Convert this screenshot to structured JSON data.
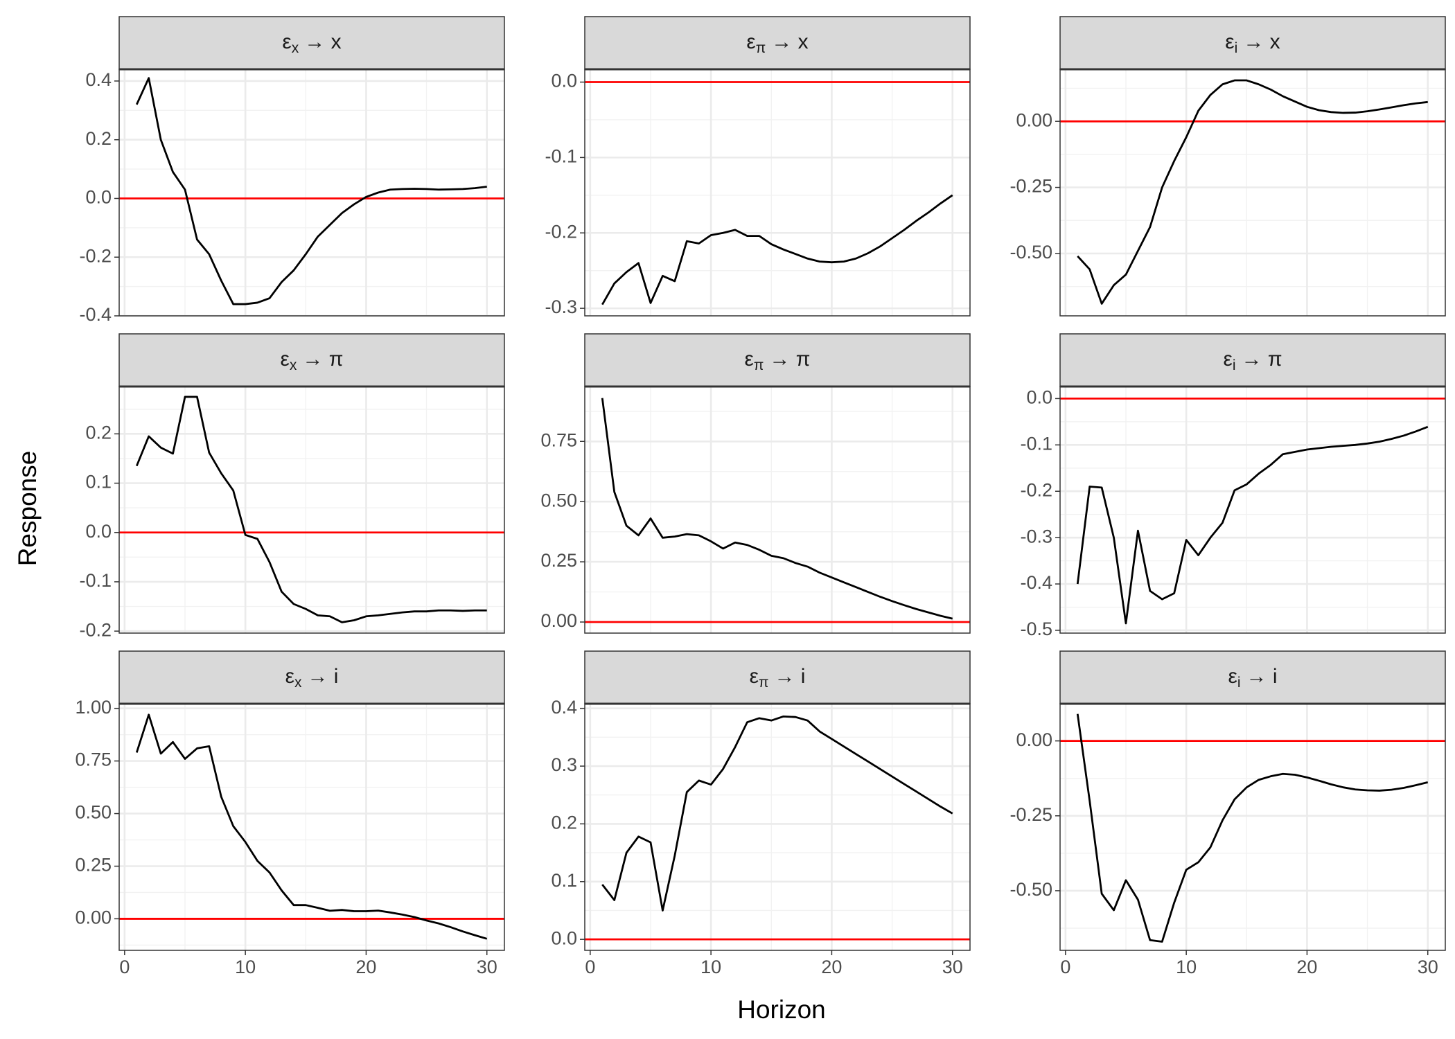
{
  "xlabel": "Horizon",
  "ylabel": "Response",
  "chart_data": [
    {
      "type": "line",
      "strip": {
        "symbol": "ε",
        "subscript": "x",
        "label": "→ x"
      },
      "x": [
        1,
        2,
        3,
        4,
        5,
        6,
        7,
        8,
        9,
        10,
        11,
        12,
        13,
        14,
        15,
        16,
        17,
        18,
        19,
        20,
        21,
        22,
        23,
        24,
        25,
        26,
        27,
        28,
        29,
        30
      ],
      "values": [
        0.32,
        0.41,
        0.2,
        0.09,
        0.03,
        -0.14,
        -0.19,
        -0.28,
        -0.36,
        -0.36,
        -0.355,
        -0.34,
        -0.285,
        -0.245,
        -0.19,
        -0.13,
        -0.09,
        -0.05,
        -0.02,
        0.005,
        0.02,
        0.03,
        0.032,
        0.033,
        0.032,
        0.03,
        0.031,
        0.032,
        0.035,
        0.04
      ],
      "color": "#000000",
      "reference_line": {
        "value": 0,
        "color": "#ff0000"
      },
      "grid": true,
      "xlim": [
        -0.45,
        31.45
      ],
      "xticks": [
        0,
        10,
        20,
        30
      ],
      "minor_xticks": [
        5,
        15,
        25
      ],
      "ylim": [
        -0.4,
        0.44
      ],
      "yticks": [
        -0.4,
        -0.2,
        {
          "value": 0,
          "label": "0.0"
        },
        0.2,
        0.4
      ],
      "minor_yticks": [
        -0.3,
        -0.1,
        0.1,
        0.3
      ]
    },
    {
      "type": "line",
      "strip": {
        "symbol": "ε",
        "subscript": "π",
        "label": "→ x"
      },
      "x": [
        1,
        2,
        3,
        4,
        5,
        6,
        7,
        8,
        9,
        10,
        11,
        12,
        13,
        14,
        15,
        16,
        17,
        18,
        19,
        20,
        21,
        22,
        23,
        24,
        25,
        26,
        27,
        28,
        29,
        30
      ],
      "values": [
        -0.295,
        -0.267,
        -0.252,
        -0.24,
        -0.293,
        -0.257,
        -0.264,
        -0.211,
        -0.214,
        -0.203,
        -0.2,
        -0.196,
        -0.204,
        -0.204,
        -0.215,
        -0.222,
        -0.228,
        -0.234,
        -0.238,
        -0.239,
        -0.238,
        -0.234,
        -0.227,
        -0.218,
        -0.207,
        -0.196,
        -0.184,
        -0.173,
        -0.161,
        -0.15
      ],
      "color": "#000000",
      "reference_line": {
        "value": 0,
        "color": "#ff0000"
      },
      "grid": true,
      "xlim": [
        -0.45,
        31.45
      ],
      "xticks": [
        0,
        10,
        20,
        30
      ],
      "minor_xticks": [
        5,
        15,
        25
      ],
      "ylim": [
        -0.31,
        0.017
      ],
      "yticks": [
        -0.3,
        -0.2,
        -0.1,
        {
          "value": 0,
          "label": "0.0"
        }
      ],
      "minor_yticks": [
        -0.25,
        -0.15,
        -0.05
      ]
    },
    {
      "type": "line",
      "strip": {
        "symbol": "ε",
        "subscript": "i",
        "label": "→ x"
      },
      "x": [
        1,
        2,
        3,
        4,
        5,
        6,
        7,
        8,
        9,
        10,
        11,
        12,
        13,
        14,
        15,
        16,
        17,
        18,
        19,
        20,
        21,
        22,
        23,
        24,
        25,
        26,
        27,
        28,
        29,
        30
      ],
      "values": [
        -0.51,
        -0.56,
        -0.69,
        -0.62,
        -0.58,
        -0.49,
        -0.4,
        -0.25,
        -0.15,
        -0.06,
        0.04,
        0.1,
        0.14,
        0.155,
        0.155,
        0.14,
        0.12,
        0.095,
        0.075,
        0.055,
        0.042,
        0.035,
        0.032,
        0.033,
        0.038,
        0.045,
        0.053,
        0.061,
        0.068,
        0.073
      ],
      "color": "#000000",
      "reference_line": {
        "value": 0,
        "color": "#ff0000"
      },
      "grid": true,
      "xlim": [
        -0.45,
        31.45
      ],
      "xticks": [
        0,
        10,
        20,
        30
      ],
      "minor_xticks": [
        5,
        15,
        25
      ],
      "ylim": [
        -0.736,
        0.197
      ],
      "yticks": [
        {
          "value": -0.5,
          "label": "-0.50"
        },
        -0.25,
        {
          "value": 0,
          "label": "0.00"
        }
      ],
      "minor_yticks": [
        -0.625,
        -0.375,
        -0.125,
        0.125
      ]
    },
    {
      "type": "line",
      "strip": {
        "symbol": "ε",
        "subscript": "x",
        "label": "→ π"
      },
      "x": [
        1,
        2,
        3,
        4,
        5,
        6,
        7,
        8,
        9,
        10,
        11,
        12,
        13,
        14,
        15,
        16,
        17,
        18,
        19,
        20,
        21,
        22,
        23,
        24,
        25,
        26,
        27,
        28,
        29,
        30
      ],
      "values": [
        0.135,
        0.195,
        0.172,
        0.16,
        0.275,
        0.275,
        0.162,
        0.12,
        0.085,
        -0.005,
        -0.013,
        -0.06,
        -0.12,
        -0.145,
        -0.155,
        -0.168,
        -0.17,
        -0.182,
        -0.178,
        -0.17,
        -0.168,
        -0.165,
        -0.162,
        -0.16,
        -0.16,
        -0.158,
        -0.158,
        -0.159,
        -0.158,
        -0.158
      ],
      "color": "#000000",
      "reference_line": {
        "value": 0,
        "color": "#ff0000"
      },
      "grid": true,
      "xlim": [
        -0.45,
        31.45
      ],
      "xticks": [
        0,
        10,
        20,
        30
      ],
      "minor_xticks": [
        5,
        15,
        25
      ],
      "ylim": [
        -0.204,
        0.296
      ],
      "yticks": [
        -0.2,
        -0.1,
        {
          "value": 0,
          "label": "0.0"
        },
        0.1,
        0.2
      ],
      "minor_yticks": [
        -0.15,
        -0.05,
        0.05,
        0.15,
        0.25
      ]
    },
    {
      "type": "line",
      "strip": {
        "symbol": "ε",
        "subscript": "π",
        "label": "→ π"
      },
      "x": [
        1,
        2,
        3,
        4,
        5,
        6,
        7,
        8,
        9,
        10,
        11,
        12,
        13,
        14,
        15,
        16,
        17,
        18,
        19,
        20,
        21,
        22,
        23,
        24,
        25,
        26,
        27,
        28,
        29,
        30
      ],
      "values": [
        0.93,
        0.54,
        0.4,
        0.36,
        0.43,
        0.35,
        0.355,
        0.365,
        0.36,
        0.335,
        0.305,
        0.33,
        0.32,
        0.3,
        0.275,
        0.265,
        0.245,
        0.23,
        0.205,
        0.185,
        0.165,
        0.145,
        0.125,
        0.105,
        0.087,
        0.07,
        0.054,
        0.04,
        0.026,
        0.014
      ],
      "color": "#000000",
      "reference_line": {
        "value": 0,
        "color": "#ff0000"
      },
      "grid": true,
      "xlim": [
        -0.45,
        31.45
      ],
      "xticks": [
        0,
        10,
        20,
        30
      ],
      "minor_xticks": [
        5,
        15,
        25
      ],
      "ylim": [
        -0.046,
        0.978
      ],
      "yticks": [
        {
          "value": 0,
          "label": "0.00"
        },
        0.25,
        {
          "value": 0.5,
          "label": "0.50"
        },
        0.75
      ],
      "minor_yticks": [
        0.125,
        0.375,
        0.625,
        0.875
      ]
    },
    {
      "type": "line",
      "strip": {
        "symbol": "ε",
        "subscript": "i",
        "label": "→ π"
      },
      "x": [
        1,
        2,
        3,
        4,
        5,
        6,
        7,
        8,
        9,
        10,
        11,
        12,
        13,
        14,
        15,
        16,
        17,
        18,
        19,
        20,
        21,
        22,
        23,
        24,
        25,
        26,
        27,
        28,
        29,
        30
      ],
      "values": [
        -0.4,
        -0.19,
        -0.192,
        -0.3,
        -0.485,
        -0.285,
        -0.415,
        -0.433,
        -0.42,
        -0.305,
        -0.338,
        -0.3,
        -0.268,
        -0.198,
        -0.185,
        -0.162,
        -0.143,
        -0.12,
        -0.115,
        -0.11,
        -0.107,
        -0.104,
        -0.102,
        -0.1,
        -0.097,
        -0.093,
        -0.087,
        -0.08,
        -0.071,
        -0.061
      ],
      "color": "#000000",
      "reference_line": {
        "value": 0,
        "color": "#ff0000"
      },
      "grid": true,
      "xlim": [
        -0.45,
        31.45
      ],
      "xticks": [
        0,
        10,
        20,
        30
      ],
      "minor_xticks": [
        5,
        15,
        25
      ],
      "ylim": [
        -0.506,
        0.026
      ],
      "yticks": [
        -0.5,
        -0.4,
        -0.3,
        -0.2,
        -0.1,
        {
          "value": 0,
          "label": "0.0"
        }
      ],
      "minor_yticks": [
        -0.45,
        -0.35,
        -0.25,
        -0.15,
        -0.05
      ]
    },
    {
      "type": "line",
      "strip": {
        "symbol": "ε",
        "subscript": "x",
        "label": "→ i"
      },
      "x": [
        1,
        2,
        3,
        4,
        5,
        6,
        7,
        8,
        9,
        10,
        11,
        12,
        13,
        14,
        15,
        16,
        17,
        18,
        19,
        20,
        21,
        22,
        23,
        24,
        25,
        26,
        27,
        28,
        29,
        30
      ],
      "values": [
        0.79,
        0.97,
        0.785,
        0.84,
        0.76,
        0.81,
        0.82,
        0.58,
        0.44,
        0.365,
        0.275,
        0.22,
        0.135,
        0.065,
        0.065,
        0.052,
        0.038,
        0.042,
        0.036,
        0.036,
        0.039,
        0.03,
        0.02,
        0.008,
        -0.008,
        -0.022,
        -0.04,
        -0.06,
        -0.078,
        -0.095
      ],
      "color": "#000000",
      "reference_line": {
        "value": 0,
        "color": "#ff0000"
      },
      "grid": true,
      "xlim": [
        -0.45,
        31.45
      ],
      "xticks": [
        0,
        10,
        20,
        30
      ],
      "minor_xticks": [
        5,
        15,
        25
      ],
      "ylim": [
        -0.15,
        1.022
      ],
      "yticks": [
        {
          "value": 0,
          "label": "0.00"
        },
        0.25,
        {
          "value": 0.5,
          "label": "0.50"
        },
        0.75,
        {
          "value": 1,
          "label": "1.00"
        }
      ],
      "minor_yticks": [
        -0.125,
        0.125,
        0.375,
        0.625,
        0.875
      ]
    },
    {
      "type": "line",
      "strip": {
        "symbol": "ε",
        "subscript": "π",
        "label": "→ i"
      },
      "x": [
        1,
        2,
        3,
        4,
        5,
        6,
        7,
        8,
        9,
        10,
        11,
        12,
        13,
        14,
        15,
        16,
        17,
        18,
        19,
        20,
        21,
        22,
        23,
        24,
        25,
        26,
        27,
        28,
        29,
        30
      ],
      "values": [
        0.095,
        0.068,
        0.15,
        0.178,
        0.168,
        0.05,
        0.145,
        0.255,
        0.275,
        0.268,
        0.295,
        0.333,
        0.376,
        0.383,
        0.379,
        0.386,
        0.385,
        0.379,
        0.36,
        0.347,
        0.334,
        0.321,
        0.308,
        0.295,
        0.282,
        0.269,
        0.256,
        0.243,
        0.23,
        0.218
      ],
      "color": "#000000",
      "reference_line": {
        "value": 0,
        "color": "#ff0000"
      },
      "grid": true,
      "xlim": [
        -0.45,
        31.45
      ],
      "xticks": [
        0,
        10,
        20,
        30
      ],
      "minor_xticks": [
        5,
        15,
        25
      ],
      "ylim": [
        -0.019,
        0.408
      ],
      "yticks": [
        {
          "value": 0,
          "label": "0.0"
        },
        0.1,
        0.2,
        0.3,
        0.4
      ],
      "minor_yticks": [
        0.05,
        0.15,
        0.25,
        0.35
      ]
    },
    {
      "type": "line",
      "strip": {
        "symbol": "ε",
        "subscript": "i",
        "label": "→ i"
      },
      "x": [
        1,
        2,
        3,
        4,
        5,
        6,
        7,
        8,
        9,
        10,
        11,
        12,
        13,
        14,
        15,
        16,
        17,
        18,
        19,
        20,
        21,
        22,
        23,
        24,
        25,
        26,
        27,
        28,
        29,
        30
      ],
      "values": [
        0.09,
        -0.2,
        -0.51,
        -0.565,
        -0.465,
        -0.53,
        -0.665,
        -0.67,
        -0.54,
        -0.43,
        -0.405,
        -0.355,
        -0.265,
        -0.195,
        -0.155,
        -0.13,
        -0.118,
        -0.11,
        -0.113,
        -0.122,
        -0.133,
        -0.145,
        -0.155,
        -0.162,
        -0.165,
        -0.166,
        -0.163,
        -0.157,
        -0.148,
        -0.138
      ],
      "color": "#000000",
      "reference_line": {
        "value": 0,
        "color": "#ff0000"
      },
      "grid": true,
      "xlim": [
        -0.45,
        31.45
      ],
      "xticks": [
        0,
        10,
        20,
        30
      ],
      "minor_xticks": [
        5,
        15,
        25
      ],
      "ylim": [
        -0.699,
        0.124
      ],
      "yticks": [
        {
          "value": -0.5,
          "label": "-0.50"
        },
        -0.25,
        {
          "value": 0,
          "label": "0.00"
        }
      ],
      "minor_yticks": [
        -0.625,
        -0.375,
        -0.125
      ]
    }
  ]
}
